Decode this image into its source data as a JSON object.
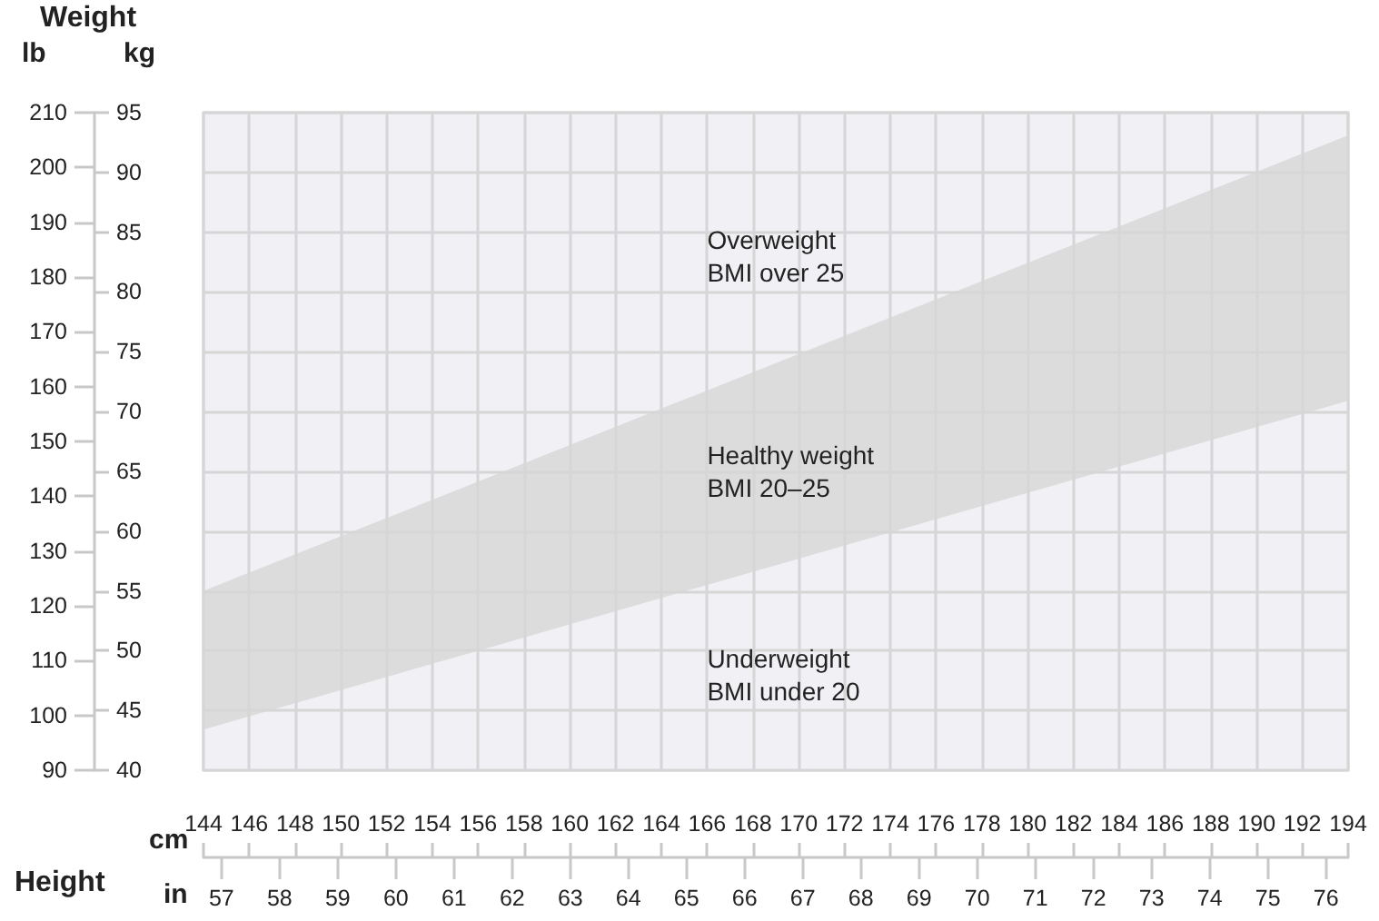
{
  "chart_data": {
    "type": "area",
    "xlabel": "cm",
    "x2label": "in",
    "ylabel": "kg",
    "y2label": "lb",
    "annotations": [
      "Weight",
      "Height",
      "Overweight\nBMI over 25",
      "Healthy weight\nBMI 20–25",
      "Underweight\nBMI under 20"
    ],
    "x": [
      144,
      194
    ],
    "series": [
      {
        "color": "#dcdcdc",
        "values": [
          55.0,
          93.1
        ]
      },
      {
        "color": "#f0f0f5",
        "values": [
          43.4,
          70.9
        ]
      }
    ],
    "xlim": [
      144,
      194
    ],
    "xticks": [
      144,
      146,
      148,
      150,
      152,
      154,
      156,
      158,
      160,
      162,
      164,
      166,
      168,
      170,
      172,
      174,
      176,
      178,
      180,
      182,
      184,
      186,
      188,
      190,
      192,
      194
    ],
    "x2lim": [
      56.69,
      76.38
    ],
    "x2ticks": [
      57,
      58,
      59,
      60,
      61,
      62,
      63,
      64,
      65,
      66,
      67,
      68,
      69,
      70,
      71,
      72,
      73,
      74,
      75,
      76
    ],
    "ylim": [
      40,
      95
    ],
    "yticks": [
      40,
      45,
      50,
      55,
      60,
      65,
      70,
      75,
      80,
      85,
      90,
      95
    ],
    "y2lim": [
      90,
      210
    ],
    "y2ticks": [
      90,
      100,
      110,
      120,
      130,
      140,
      150,
      160,
      170,
      180,
      190,
      200,
      210
    ],
    "grid": true
  }
}
